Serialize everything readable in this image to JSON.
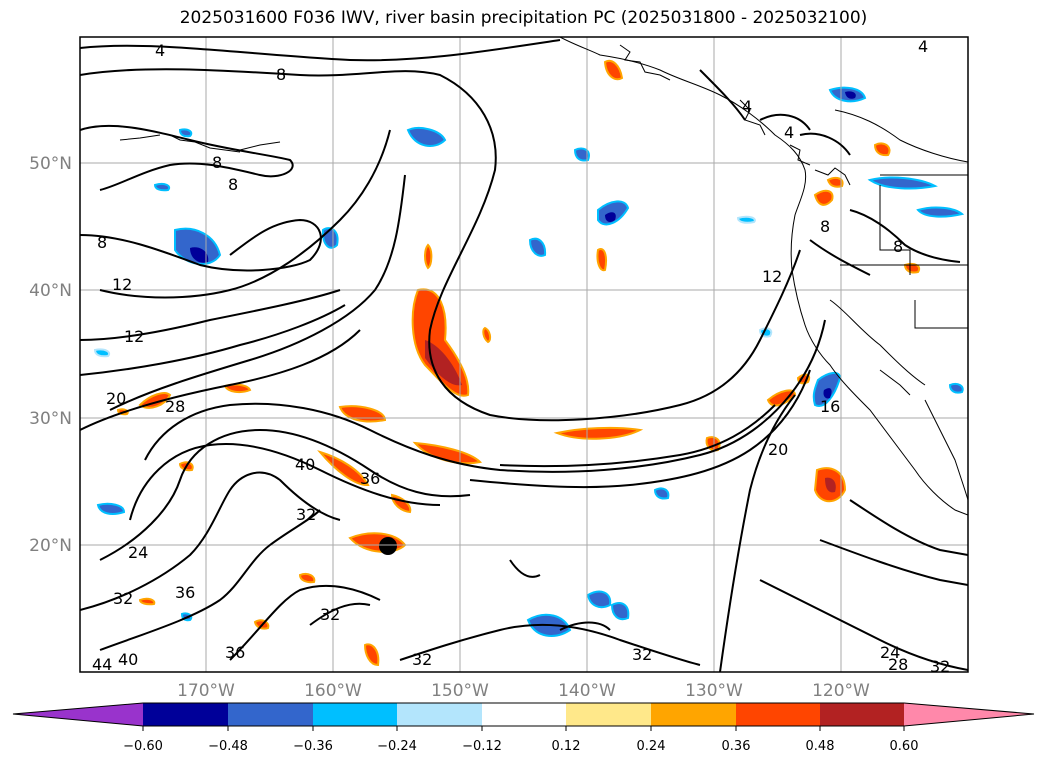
{
  "title": "2025031600 F036 IWV, river basin precipitation PC (2025031800 - 2025032100)",
  "lat_labels": [
    "50°N",
    "40°N",
    "30°N",
    "20°N"
  ],
  "lon_labels": [
    "170°W",
    "160°W",
    "150°W",
    "140°W",
    "130°W",
    "120°W"
  ],
  "contour_labels": [
    "4",
    "8",
    "4",
    "4",
    "8",
    "8",
    "8",
    "12",
    "12",
    "20",
    "28",
    "40",
    "36",
    "32",
    "24",
    "32",
    "36",
    "36",
    "32",
    "40",
    "44",
    "32",
    "16",
    "20",
    "32",
    "24",
    "28",
    "32",
    "8",
    "8",
    "12",
    "4"
  ],
  "colorbar": {
    "ticks": [
      "−0.60",
      "−0.48",
      "−0.36",
      "−0.24",
      "−0.12",
      "0.12",
      "0.24",
      "0.36",
      "0.48",
      "0.60"
    ],
    "colors": {
      "under": "#9933cc",
      "bins": [
        "#000099",
        "#3366cc",
        "#00bfff",
        "#b3e5fc",
        "#ffffff",
        "#ffe88a",
        "#ffa500",
        "#ff4500",
        "#b22222"
      ],
      "over": "#ff88aa"
    }
  },
  "map_style": {
    "contour_color": "#000000",
    "grid_color": "#aaaaaa",
    "coastline_color": "#000000"
  }
}
